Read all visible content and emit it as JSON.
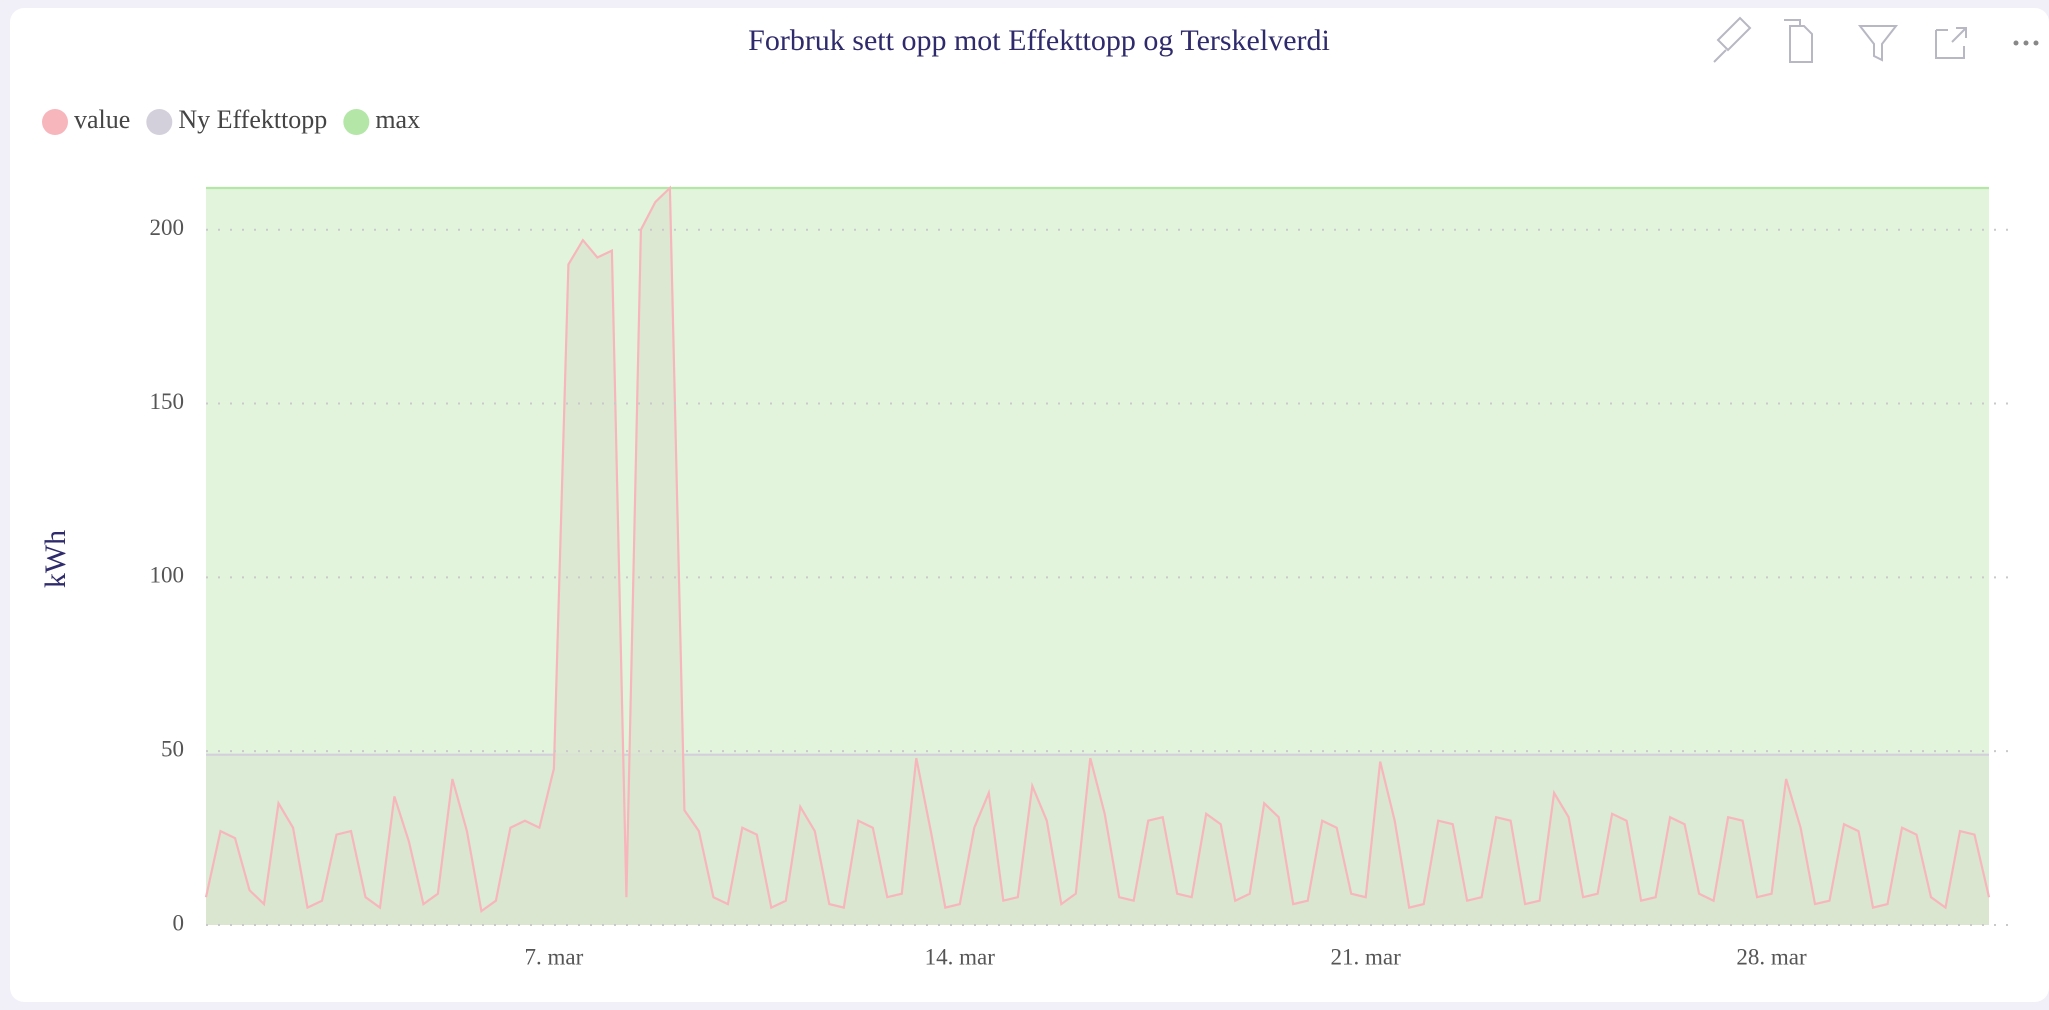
{
  "chart_data": {
    "type": "area",
    "title": "Forbruk sett opp mot Effekttopp og Terskelverdi",
    "y_label": "kWh",
    "xlim": [
      1,
      31.75
    ],
    "xticks": [
      {
        "value": 7,
        "label": "7. mar"
      },
      {
        "value": 14,
        "label": "14. mar"
      },
      {
        "value": 21,
        "label": "21. mar"
      },
      {
        "value": 28,
        "label": "28. mar"
      }
    ],
    "ylim": [
      0,
      212
    ],
    "yticks": [
      0,
      50,
      100,
      150,
      200
    ],
    "grid": true,
    "legend": "top-left",
    "series": [
      {
        "name": "max",
        "color": "#b4e6a8",
        "fill": "#e2f5dc",
        "x": [
          1,
          31.75
        ],
        "values": [
          212,
          212
        ]
      },
      {
        "name": "Ny Effekttopp",
        "color": "#d3d0dc",
        "fill": "#d9e9d3",
        "x": [
          1,
          31.75
        ],
        "values": [
          49,
          49
        ]
      },
      {
        "name": "value",
        "color": "#f7b6bb",
        "fill": "#dbe5d0",
        "x": [
          1,
          1.25,
          1.5,
          1.75,
          2,
          2.25,
          2.5,
          2.75,
          3,
          3.25,
          3.5,
          3.75,
          4,
          4.25,
          4.5,
          4.75,
          5,
          5.25,
          5.5,
          5.75,
          6,
          6.25,
          6.5,
          6.75,
          7,
          7.25,
          7.5,
          7.75,
          8,
          8.25,
          8.5,
          8.75,
          9,
          9.25,
          9.5,
          9.75,
          10,
          10.25,
          10.5,
          10.75,
          11,
          11.25,
          11.5,
          11.75,
          12,
          12.25,
          12.5,
          12.75,
          13,
          13.25,
          13.5,
          13.75,
          14,
          14.25,
          14.5,
          14.75,
          15,
          15.25,
          15.5,
          15.75,
          16,
          16.25,
          16.5,
          16.75,
          17,
          17.25,
          17.5,
          17.75,
          18,
          18.25,
          18.5,
          18.75,
          19,
          19.25,
          19.5,
          19.75,
          20,
          20.25,
          20.5,
          20.75,
          21,
          21.25,
          21.5,
          21.75,
          22,
          22.25,
          22.5,
          22.75,
          23,
          23.25,
          23.5,
          23.75,
          24,
          24.25,
          24.5,
          24.75,
          25,
          25.25,
          25.5,
          25.75,
          26,
          26.25,
          26.5,
          26.75,
          27,
          27.25,
          27.5,
          27.75,
          28,
          28.25,
          28.5,
          28.75,
          29,
          29.25,
          29.5,
          29.75,
          30,
          30.25,
          30.5,
          30.75,
          31,
          31.25,
          31.5,
          31.75
        ],
        "values": [
          8,
          27,
          25,
          10,
          6,
          35,
          28,
          5,
          7,
          26,
          27,
          8,
          5,
          37,
          24,
          6,
          9,
          42,
          27,
          4,
          7,
          28,
          30,
          28,
          45,
          190,
          197,
          192,
          194,
          8,
          200,
          208,
          212,
          33,
          27,
          8,
          6,
          28,
          26,
          5,
          7,
          34,
          27,
          6,
          5,
          30,
          28,
          8,
          9,
          48,
          27,
          5,
          6,
          28,
          38,
          7,
          8,
          40,
          30,
          6,
          9,
          48,
          32,
          8,
          7,
          30,
          31,
          9,
          8,
          32,
          29,
          7,
          9,
          35,
          31,
          6,
          7,
          30,
          28,
          9,
          8,
          47,
          30,
          5,
          6,
          30,
          29,
          7,
          8,
          31,
          30,
          6,
          7,
          38,
          31,
          8,
          9,
          32,
          30,
          7,
          8,
          31,
          29,
          9,
          7,
          31,
          30,
          8,
          9,
          42,
          28,
          6,
          7,
          29,
          27,
          5,
          6,
          28,
          26,
          8,
          5,
          27,
          26,
          8
        ]
      }
    ]
  }
}
